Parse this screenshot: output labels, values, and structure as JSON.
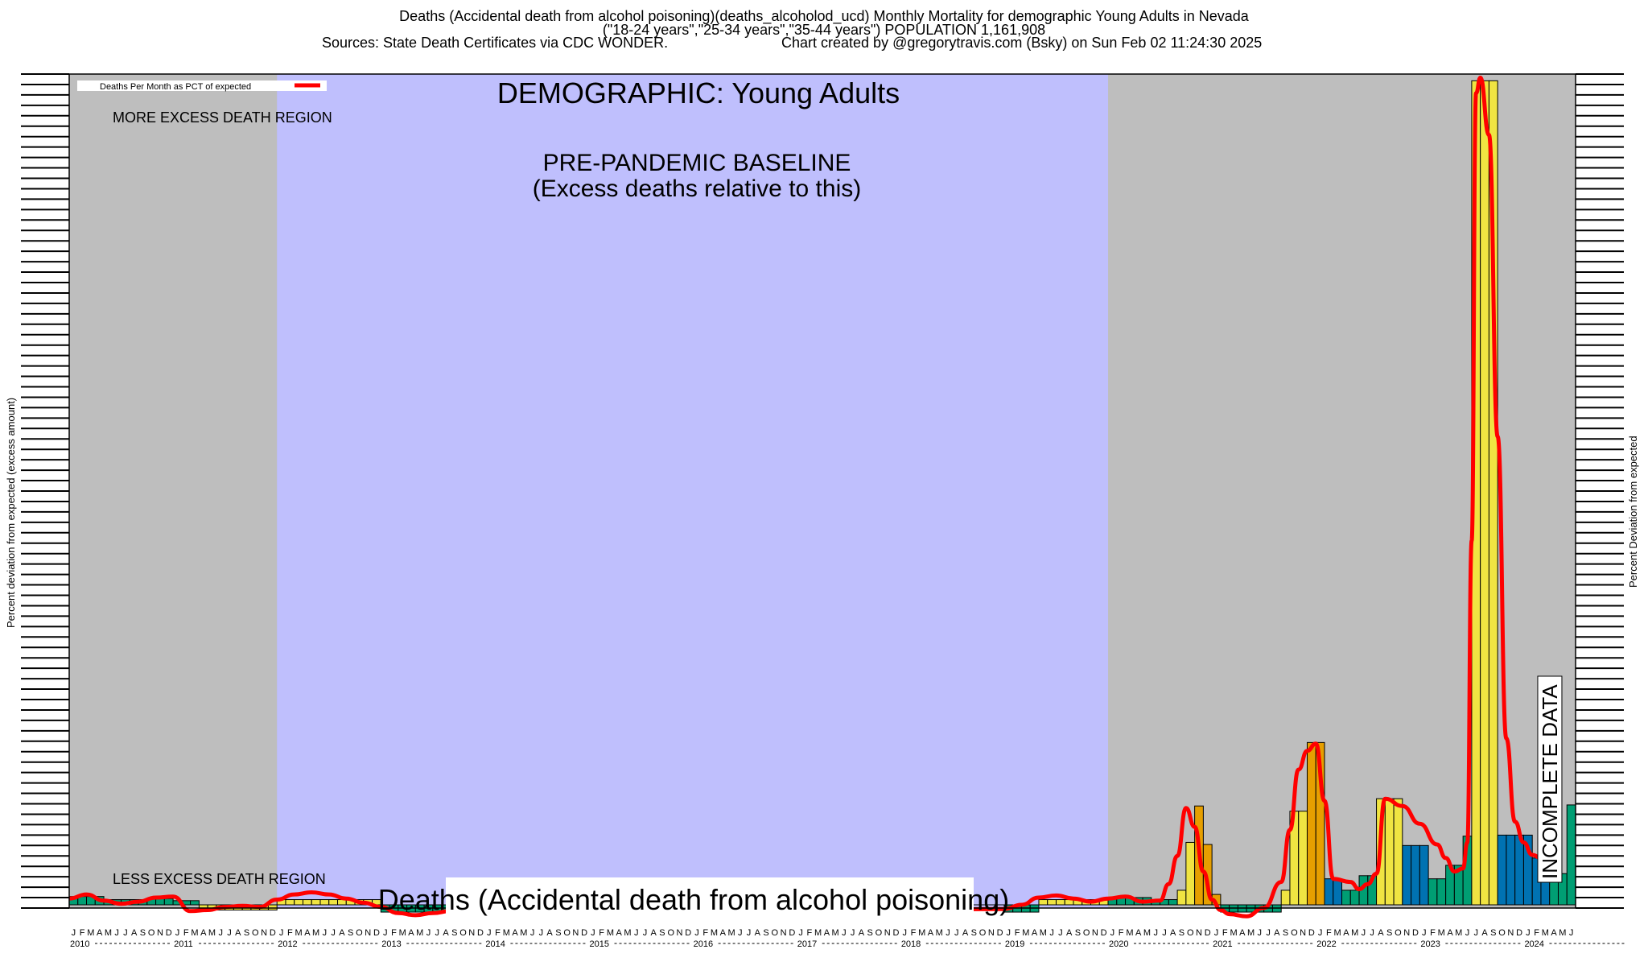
{
  "header": {
    "line1": "Deaths (Accidental death from alcohol poisoning)(deaths_alcoholod_ucd) Monthly Mortality for demographic Young Adults in Nevada",
    "line2": "(\"18-24 years\",\"25-34 years\",\"35-44 years\") POPULATION 1,161,908",
    "line3_left": "Sources: State Death Certificates via CDC WONDER.",
    "line3_right": "Chart created by @gregorytravis.com (Bsky) on Sun Feb 02 11:24:30 2025"
  },
  "colors": {
    "gray_region": "#bebebe",
    "baseline_region": "#bfbffd",
    "trend_line": "#ff0000",
    "bar_high": "#f0e442",
    "bar_orange": "#e69f00",
    "bar_blue": "#0072b2",
    "bar_green": "#009e73",
    "bar_teal": "#2a8f74"
  },
  "chart_data": {
    "type": "bar",
    "title": "DEMOGRAPHIC: Young Adults",
    "legend_label": "Deaths Per Month as PCT of expected",
    "legend_position": "top-left",
    "annotations": {
      "more_excess": "MORE EXCESS DEATH REGION",
      "less_excess": "LESS EXCESS DEATH REGION",
      "baseline_title": "PRE-PANDEMIC BASELINE",
      "baseline_subtitle": "(Excess deaths relative to this)",
      "series_label": "Deaths (Accidental death from alcohol poisoning)",
      "incomplete": "INCOMPLETE DATA"
    },
    "ylabel_left": "Percent deviation from expected (excess amount)",
    "ylabel_right": "Percent Deviation from expected",
    "month_letters": [
      "J",
      "F",
      "M",
      "A",
      "M",
      "J",
      "J",
      "A",
      "S",
      "O",
      "N",
      "D"
    ],
    "years": [
      "2010",
      "2011",
      "2012",
      "2013",
      "2014",
      "2015",
      "2016",
      "2017",
      "2018",
      "2019",
      "2020",
      "2021",
      "2022",
      "2023",
      "2024"
    ],
    "start_year": 2010,
    "months_shown": 174,
    "baseline_start_index": 24,
    "baseline_end_index": 120,
    "incomplete_start_index": 170,
    "ylim": [
      -8,
      800
    ],
    "bars": [
      {
        "start": 0,
        "end": 4,
        "value": 8,
        "color": "bar_green"
      },
      {
        "start": 4,
        "end": 9,
        "value": 5,
        "color": "bar_green"
      },
      {
        "start": 9,
        "end": 12,
        "value": 6,
        "color": "bar_green"
      },
      {
        "start": 12,
        "end": 15,
        "value": 4,
        "color": "bar_green"
      },
      {
        "start": 15,
        "end": 24,
        "value": -5,
        "color": "bar_high"
      },
      {
        "start": 24,
        "end": 36,
        "value": 5,
        "color": "bar_high"
      },
      {
        "start": 36,
        "end": 44,
        "value": -7,
        "color": "bar_green"
      },
      {
        "start": 44,
        "end": 108,
        "value": 0,
        "color": "bar_green"
      },
      {
        "start": 108,
        "end": 112,
        "value": -7,
        "color": "bar_green"
      },
      {
        "start": 112,
        "end": 120,
        "value": 5,
        "color": "bar_high"
      },
      {
        "start": 120,
        "end": 125,
        "value": 7,
        "color": "bar_green"
      },
      {
        "start": 125,
        "end": 128,
        "value": 5,
        "color": "bar_green"
      },
      {
        "start": 128,
        "end": 129,
        "value": 14,
        "color": "bar_high"
      },
      {
        "start": 129,
        "end": 130,
        "value": 60,
        "color": "bar_high"
      },
      {
        "start": 130,
        "end": 131,
        "value": 95,
        "color": "bar_orange"
      },
      {
        "start": 131,
        "end": 132,
        "value": 58,
        "color": "bar_orange"
      },
      {
        "start": 132,
        "end": 133,
        "value": 10,
        "color": "bar_orange"
      },
      {
        "start": 133,
        "end": 140,
        "value": -7,
        "color": "bar_green"
      },
      {
        "start": 140,
        "end": 141,
        "value": 14,
        "color": "bar_high"
      },
      {
        "start": 141,
        "end": 143,
        "value": 90,
        "color": "bar_high"
      },
      {
        "start": 143,
        "end": 145,
        "value": 156,
        "color": "bar_orange"
      },
      {
        "start": 145,
        "end": 147,
        "value": 25,
        "color": "bar_blue"
      },
      {
        "start": 147,
        "end": 149,
        "value": 14,
        "color": "bar_green"
      },
      {
        "start": 149,
        "end": 151,
        "value": 28,
        "color": "bar_green"
      },
      {
        "start": 151,
        "end": 154,
        "value": 102,
        "color": "bar_high"
      },
      {
        "start": 154,
        "end": 157,
        "value": 57,
        "color": "bar_blue"
      },
      {
        "start": 157,
        "end": 159,
        "value": 25,
        "color": "bar_green"
      },
      {
        "start": 159,
        "end": 161,
        "value": 38,
        "color": "bar_green"
      },
      {
        "start": 161,
        "end": 162,
        "value": 66,
        "color": "bar_green"
      },
      {
        "start": 162,
        "end": 165,
        "value": 792,
        "color": "bar_high"
      },
      {
        "start": 165,
        "end": 169,
        "value": 67,
        "color": "bar_blue"
      },
      {
        "start": 169,
        "end": 171,
        "value": 45,
        "color": "bar_blue"
      },
      {
        "start": 171,
        "end": 173,
        "value": 30,
        "color": "bar_green"
      },
      {
        "start": 173,
        "end": 174,
        "value": 96,
        "color": "bar_green"
      }
    ],
    "trend_x": [
      0,
      2,
      4,
      6,
      8,
      10,
      12,
      14,
      16,
      18,
      20,
      22,
      24,
      26,
      28,
      30,
      32,
      34,
      36,
      38,
      40,
      42,
      44,
      108,
      110,
      112,
      114,
      116,
      118,
      120,
      122,
      124,
      126,
      127,
      128,
      129,
      130,
      131,
      132,
      133,
      134,
      136,
      138,
      140,
      141,
      142,
      143,
      144,
      145,
      146,
      148,
      149,
      150,
      151,
      152,
      154,
      156,
      158,
      159,
      160,
      161,
      161.5,
      162,
      162.5,
      163,
      164,
      165,
      166,
      167,
      168,
      169,
      170
    ],
    "trend_y": [
      6,
      10,
      4,
      1,
      3,
      7,
      8,
      -6,
      -5,
      -2,
      -1,
      -2,
      5,
      10,
      12,
      10,
      6,
      2,
      -2,
      -8,
      -10,
      -8,
      -6,
      -4,
      0,
      7,
      9,
      6,
      3,
      6,
      8,
      3,
      4,
      20,
      47,
      93,
      75,
      32,
      5,
      -5,
      -9,
      -11,
      -3,
      22,
      72,
      130,
      148,
      155,
      100,
      25,
      22,
      15,
      20,
      30,
      102,
      95,
      78,
      58,
      45,
      32,
      35,
      60,
      350,
      780,
      795,
      740,
      450,
      160,
      80,
      60,
      48,
      45
    ]
  }
}
